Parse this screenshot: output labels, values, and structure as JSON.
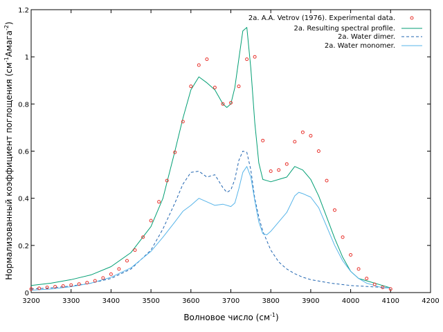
{
  "chart_data": {
    "type": "line",
    "xlabel": "Волновое число (см",
    "xlabel_sup": "-1",
    "xlabel_end": ")",
    "ylabel": "Нормализованный коэффициент поглощения (см",
    "ylabel_sup1": "-1",
    "ylabel_mid": "Амага",
    "ylabel_sup2": "-2",
    "ylabel_end": ")",
    "xlim": [
      3200,
      4200
    ],
    "ylim": [
      0,
      1.2
    ],
    "xticks": [
      3200,
      3300,
      3400,
      3500,
      3600,
      3700,
      3800,
      3900,
      4000,
      4100,
      4200
    ],
    "yticks": [
      "0",
      "0.2",
      "0.4",
      "0.6",
      "0.8",
      "1",
      "1.2"
    ],
    "legend_position": "top-right",
    "series": [
      {
        "name": "2a. A.A. Vetrov (1976). Experimental data.",
        "style": "points",
        "color": "#e8312b",
        "x": [
          3200,
          3220,
          3240,
          3260,
          3280,
          3300,
          3320,
          3340,
          3360,
          3380,
          3400,
          3420,
          3440,
          3460,
          3480,
          3500,
          3520,
          3540,
          3560,
          3580,
          3600,
          3620,
          3640,
          3660,
          3680,
          3700,
          3720,
          3740,
          3760,
          3780,
          3800,
          3820,
          3840,
          3860,
          3880,
          3900,
          3920,
          3940,
          3960,
          3980,
          4000,
          4020,
          4040,
          4060,
          4080,
          4100
        ],
        "y": [
          0.015,
          0.018,
          0.022,
          0.025,
          0.028,
          0.032,
          0.036,
          0.042,
          0.05,
          0.062,
          0.078,
          0.1,
          0.135,
          0.18,
          0.235,
          0.305,
          0.385,
          0.475,
          0.595,
          0.725,
          0.875,
          0.965,
          0.99,
          0.87,
          0.8,
          0.805,
          0.875,
          0.99,
          1.0,
          0.645,
          0.515,
          0.52,
          0.545,
          0.64,
          0.68,
          0.665,
          0.6,
          0.475,
          0.35,
          0.235,
          0.16,
          0.1,
          0.06,
          0.035,
          0.022,
          0.015
        ]
      },
      {
        "name": "2a. Resulting spectral profile.",
        "style": "solid",
        "color": "#009e73",
        "x": [
          3200,
          3250,
          3300,
          3350,
          3400,
          3450,
          3500,
          3530,
          3560,
          3580,
          3600,
          3620,
          3640,
          3660,
          3680,
          3690,
          3700,
          3710,
          3720,
          3730,
          3740,
          3750,
          3760,
          3770,
          3780,
          3800,
          3820,
          3840,
          3860,
          3880,
          3900,
          3920,
          3940,
          3960,
          3980,
          4000,
          4020,
          4040,
          4060,
          4080,
          4100
        ],
        "y": [
          0.03,
          0.04,
          0.055,
          0.075,
          0.11,
          0.17,
          0.28,
          0.4,
          0.6,
          0.74,
          0.86,
          0.915,
          0.89,
          0.86,
          0.8,
          0.785,
          0.8,
          0.87,
          0.99,
          1.11,
          1.125,
          0.95,
          0.72,
          0.55,
          0.48,
          0.47,
          0.48,
          0.49,
          0.535,
          0.52,
          0.48,
          0.41,
          0.32,
          0.23,
          0.15,
          0.09,
          0.06,
          0.05,
          0.04,
          0.03,
          0.02
        ]
      },
      {
        "name": "2a. Water dimer.",
        "style": "dashed",
        "color": "#1f64b0",
        "x": [
          3200,
          3250,
          3300,
          3350,
          3400,
          3450,
          3500,
          3530,
          3560,
          3580,
          3600,
          3620,
          3640,
          3660,
          3680,
          3690,
          3700,
          3710,
          3720,
          3730,
          3740,
          3750,
          3760,
          3770,
          3780,
          3800,
          3820,
          3840,
          3860,
          3880,
          3900,
          3950,
          4000,
          4050,
          4100
        ],
        "y": [
          0.015,
          0.02,
          0.028,
          0.04,
          0.06,
          0.1,
          0.18,
          0.27,
          0.38,
          0.46,
          0.51,
          0.515,
          0.49,
          0.5,
          0.445,
          0.425,
          0.435,
          0.48,
          0.56,
          0.6,
          0.595,
          0.52,
          0.4,
          0.32,
          0.26,
          0.18,
          0.13,
          0.1,
          0.08,
          0.065,
          0.055,
          0.04,
          0.03,
          0.025,
          0.02
        ]
      },
      {
        "name": "2a. Water monomer.",
        "style": "solid",
        "color": "#56b4e9",
        "x": [
          3200,
          3250,
          3300,
          3350,
          3400,
          3450,
          3500,
          3530,
          3560,
          3580,
          3600,
          3620,
          3640,
          3660,
          3680,
          3700,
          3710,
          3720,
          3730,
          3740,
          3750,
          3760,
          3770,
          3780,
          3790,
          3800,
          3820,
          3840,
          3860,
          3870,
          3880,
          3900,
          3920,
          3940,
          3960,
          3980,
          4000,
          4020,
          4040,
          4060,
          4080,
          4100
        ],
        "y": [
          0.01,
          0.015,
          0.025,
          0.04,
          0.065,
          0.105,
          0.175,
          0.235,
          0.3,
          0.345,
          0.37,
          0.4,
          0.385,
          0.37,
          0.375,
          0.365,
          0.38,
          0.44,
          0.51,
          0.535,
          0.49,
          0.39,
          0.3,
          0.25,
          0.245,
          0.26,
          0.3,
          0.34,
          0.41,
          0.425,
          0.42,
          0.405,
          0.36,
          0.28,
          0.2,
          0.135,
          0.09,
          0.06,
          0.04,
          0.03,
          0.02,
          0.02
        ]
      }
    ]
  }
}
